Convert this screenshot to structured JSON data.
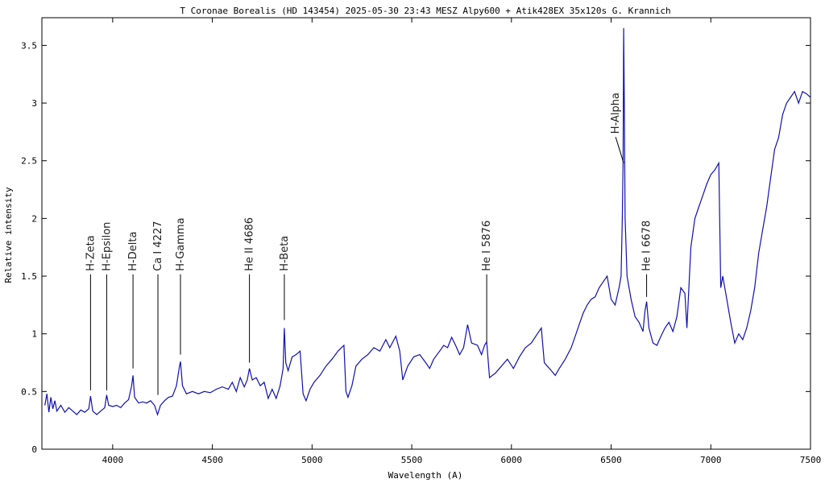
{
  "chart_data": {
    "type": "line",
    "title": "T Coronae Borealis (HD 143454)  2025-05-30 23:43 MESZ   Alpy600 + Atik428EX   35x120s   G. Krannich",
    "x_label": "Wavelength (A)",
    "y_label": "Relative intensity",
    "xlim": [
      3645,
      7500
    ],
    "ylim": [
      0,
      3.74
    ],
    "xticks": [
      4000,
      4500,
      5000,
      5500,
      6000,
      6500,
      7000,
      7500
    ],
    "yticks": [
      0,
      0.5,
      1,
      1.5,
      2,
      2.5,
      3,
      3.5
    ],
    "series": [
      {
        "color": "#1010b0",
        "x": [
          3660,
          3670,
          3680,
          3690,
          3700,
          3710,
          3720,
          3740,
          3760,
          3780,
          3800,
          3820,
          3840,
          3860,
          3880,
          3889,
          3900,
          3920,
          3940,
          3960,
          3970,
          3980,
          4000,
          4020,
          4040,
          4060,
          4080,
          4095,
          4102,
          4110,
          4130,
          4150,
          4170,
          4190,
          4210,
          4225,
          4240,
          4260,
          4280,
          4300,
          4320,
          4335,
          4340,
          4350,
          4370,
          4400,
          4430,
          4460,
          4490,
          4520,
          4550,
          4580,
          4600,
          4620,
          4640,
          4660,
          4675,
          4686,
          4700,
          4720,
          4740,
          4760,
          4780,
          4800,
          4820,
          4840,
          4855,
          4861,
          4868,
          4880,
          4900,
          4920,
          4940,
          4955,
          4970,
          4990,
          5010,
          5040,
          5070,
          5100,
          5130,
          5160,
          5170,
          5180,
          5200,
          5220,
          5250,
          5280,
          5310,
          5340,
          5370,
          5390,
          5420,
          5440,
          5455,
          5480,
          5510,
          5540,
          5570,
          5590,
          5610,
          5640,
          5660,
          5680,
          5700,
          5720,
          5740,
          5760,
          5780,
          5800,
          5830,
          5850,
          5865,
          5876,
          5890,
          5920,
          5950,
          5980,
          6010,
          6040,
          6070,
          6100,
          6130,
          6150,
          6165,
          6180,
          6200,
          6220,
          6240,
          6270,
          6300,
          6320,
          6340,
          6360,
          6380,
          6400,
          6420,
          6440,
          6460,
          6480,
          6500,
          6520,
          6540,
          6550,
          6556,
          6560,
          6563,
          6566,
          6570,
          6580,
          6600,
          6620,
          6640,
          6660,
          6670,
          6678,
          6690,
          6710,
          6730,
          6750,
          6770,
          6790,
          6810,
          6830,
          6850,
          6870,
          6880,
          6900,
          6920,
          6940,
          6960,
          6980,
          7000,
          7020,
          7040,
          7050,
          7060,
          7080,
          7100,
          7120,
          7140,
          7160,
          7180,
          7200,
          7220,
          7240,
          7260,
          7280,
          7300,
          7320,
          7340,
          7360,
          7380,
          7400,
          7420,
          7440,
          7460,
          7480,
          7500
        ],
        "values": [
          0.38,
          0.48,
          0.32,
          0.45,
          0.35,
          0.42,
          0.33,
          0.38,
          0.32,
          0.36,
          0.33,
          0.3,
          0.34,
          0.32,
          0.35,
          0.46,
          0.33,
          0.3,
          0.33,
          0.36,
          0.47,
          0.38,
          0.37,
          0.38,
          0.36,
          0.4,
          0.43,
          0.55,
          0.64,
          0.45,
          0.4,
          0.41,
          0.4,
          0.42,
          0.38,
          0.3,
          0.38,
          0.42,
          0.45,
          0.46,
          0.55,
          0.72,
          0.76,
          0.55,
          0.48,
          0.5,
          0.48,
          0.5,
          0.49,
          0.52,
          0.54,
          0.52,
          0.58,
          0.5,
          0.62,
          0.54,
          0.6,
          0.7,
          0.6,
          0.62,
          0.55,
          0.58,
          0.44,
          0.52,
          0.44,
          0.55,
          0.7,
          1.05,
          0.75,
          0.68,
          0.8,
          0.82,
          0.85,
          0.48,
          0.42,
          0.52,
          0.58,
          0.64,
          0.72,
          0.78,
          0.85,
          0.9,
          0.5,
          0.45,
          0.55,
          0.72,
          0.78,
          0.82,
          0.88,
          0.85,
          0.95,
          0.88,
          0.98,
          0.85,
          0.6,
          0.72,
          0.8,
          0.82,
          0.75,
          0.7,
          0.78,
          0.85,
          0.9,
          0.88,
          0.97,
          0.9,
          0.82,
          0.88,
          1.08,
          0.92,
          0.9,
          0.82,
          0.9,
          0.93,
          0.62,
          0.66,
          0.72,
          0.78,
          0.7,
          0.8,
          0.88,
          0.92,
          1.0,
          1.05,
          0.75,
          0.72,
          0.68,
          0.64,
          0.7,
          0.78,
          0.88,
          0.98,
          1.08,
          1.18,
          1.25,
          1.3,
          1.32,
          1.4,
          1.45,
          1.5,
          1.3,
          1.25,
          1.4,
          1.5,
          2.0,
          2.5,
          3.65,
          3.0,
          2.0,
          1.5,
          1.3,
          1.15,
          1.1,
          1.02,
          1.2,
          1.28,
          1.05,
          0.92,
          0.9,
          0.98,
          1.05,
          1.1,
          1.02,
          1.15,
          1.4,
          1.35,
          1.05,
          1.75,
          2.0,
          2.1,
          2.2,
          2.3,
          2.38,
          2.42,
          2.48,
          1.4,
          1.5,
          1.3,
          1.1,
          0.92,
          1.0,
          0.95,
          1.05,
          1.2,
          1.4,
          1.7,
          1.9,
          2.1,
          2.35,
          2.6,
          2.7,
          2.9,
          3.0,
          3.05,
          3.1,
          3.0,
          3.1,
          3.08,
          3.05
        ]
      }
    ],
    "annotations": [
      {
        "text": "H-Zeta",
        "x": 3889,
        "y": 0.51,
        "label_y": 1.53
      },
      {
        "text": "H-Epsilon",
        "x": 3970,
        "y": 0.51,
        "label_y": 1.53
      },
      {
        "text": "H-Delta",
        "x": 4102,
        "y": 0.7,
        "label_y": 1.53
      },
      {
        "text": "Ca I  4227",
        "x": 4227,
        "y": 0.47,
        "label_y": 1.53
      },
      {
        "text": "H-Gamma",
        "x": 4340,
        "y": 0.82,
        "label_y": 1.53
      },
      {
        "text": "He II  4686",
        "x": 4686,
        "y": 0.75,
        "label_y": 1.53
      },
      {
        "text": "H-Beta",
        "x": 4861,
        "y": 1.12,
        "label_y": 1.53
      },
      {
        "text": "He I  5876",
        "x": 5876,
        "y": 0.93,
        "label_y": 1.53
      },
      {
        "text": "H-Alpha",
        "x": 6563,
        "y": 2.48,
        "label_y": 2.72
      },
      {
        "text": "He I  6678",
        "x": 6678,
        "y": 1.32,
        "label_y": 1.53
      }
    ]
  }
}
